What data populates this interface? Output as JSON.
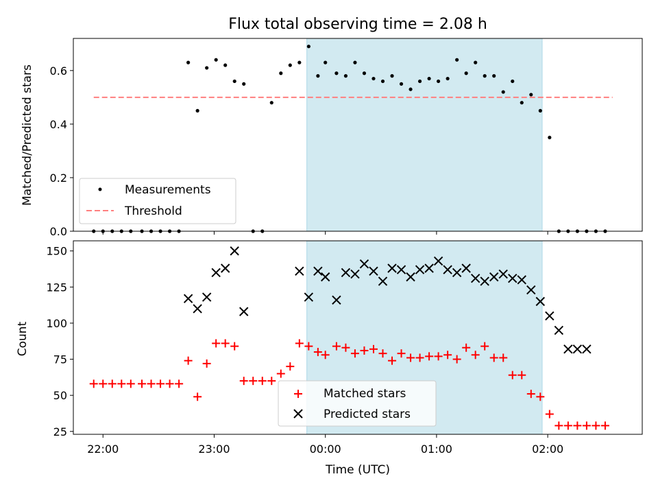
{
  "chart_data": [
    {
      "type": "scatter",
      "title": "Flux total observing time = 2.08 h",
      "ylabel": "Matched/Predicted stars",
      "xlabel": "",
      "xlim": [
        "21:44",
        "02:51"
      ],
      "ylim": [
        0,
        0.72
      ],
      "yticks": [
        0.0,
        0.2,
        0.4,
        0.6
      ],
      "ytick_labels": [
        "0.0",
        "0.2",
        "0.4",
        "0.6"
      ],
      "grid": false,
      "legend_position": "lower-left",
      "shaded_span": {
        "start": "23:50",
        "end": "01:57",
        "color": "#add8e6"
      },
      "threshold": {
        "name": "Threshold",
        "value": 0.5,
        "x_start": "21:55",
        "x_end": "02:35",
        "color": "#ff7f7f",
        "style": "dashed"
      },
      "series": [
        {
          "name": "Measurements",
          "marker": "dot",
          "color": "#000000",
          "x": [
            "21:55",
            "22:00",
            "22:05",
            "22:10",
            "22:15",
            "22:21",
            "22:26",
            "22:31",
            "22:36",
            "22:41",
            "22:46",
            "22:51",
            "22:56",
            "23:01",
            "23:06",
            "23:11",
            "23:16",
            "23:21",
            "23:26",
            "23:31",
            "23:36",
            "23:41",
            "23:46",
            "23:51",
            "23:56",
            "00:00",
            "00:06",
            "00:11",
            "00:16",
            "00:21",
            "00:26",
            "00:31",
            "00:36",
            "00:41",
            "00:46",
            "00:51",
            "00:56",
            "01:01",
            "01:06",
            "01:11",
            "01:16",
            "01:21",
            "01:26",
            "01:31",
            "01:36",
            "01:41",
            "01:46",
            "01:51",
            "01:56",
            "02:01",
            "02:06",
            "02:11",
            "02:16",
            "02:21",
            "02:26",
            "02:31"
          ],
          "y": [
            0,
            0,
            0,
            0,
            0,
            0,
            0,
            0,
            0,
            0,
            0.63,
            0.45,
            0.61,
            0.64,
            0.62,
            0.56,
            0.55,
            0,
            0,
            0.48,
            0.59,
            0.62,
            0.63,
            0.69,
            0.58,
            0.63,
            0.59,
            0.58,
            0.63,
            0.59,
            0.57,
            0.56,
            0.58,
            0.55,
            0.53,
            0.56,
            0.57,
            0.56,
            0.57,
            0.64,
            0.59,
            0.63,
            0.58,
            0.58,
            0.52,
            0.56,
            0.48,
            0.51,
            0.45,
            0.35,
            0,
            0,
            0,
            0,
            0,
            0
          ]
        }
      ]
    },
    {
      "type": "scatter",
      "title": "",
      "ylabel": "Count",
      "xlabel": "Time (UTC)",
      "xlim": [
        "21:44",
        "02:51"
      ],
      "ylim": [
        23,
        157
      ],
      "yticks": [
        25,
        50,
        75,
        100,
        125,
        150
      ],
      "ytick_labels": [
        "25",
        "50",
        "75",
        "100",
        "125",
        "150"
      ],
      "xticks": [
        "22:00",
        "23:00",
        "00:00",
        "01:00",
        "02:00"
      ],
      "xtick_labels": [
        "22:00",
        "23:00",
        "00:00",
        "01:00",
        "02:00"
      ],
      "grid": false,
      "legend_position": "lower-center",
      "shaded_span": {
        "start": "23:50",
        "end": "01:57",
        "color": "#add8e6"
      },
      "series": [
        {
          "name": "Matched stars",
          "marker": "plus",
          "color": "#ff0000",
          "x": [
            "21:55",
            "22:00",
            "22:05",
            "22:10",
            "22:15",
            "22:21",
            "22:26",
            "22:31",
            "22:36",
            "22:41",
            "22:46",
            "22:51",
            "22:56",
            "23:01",
            "23:06",
            "23:11",
            "23:16",
            "23:21",
            "23:26",
            "23:31",
            "23:36",
            "23:41",
            "23:46",
            "23:51",
            "23:56",
            "00:00",
            "00:06",
            "00:11",
            "00:16",
            "00:21",
            "00:26",
            "00:31",
            "00:36",
            "00:41",
            "00:46",
            "00:51",
            "00:56",
            "01:01",
            "01:06",
            "01:11",
            "01:16",
            "01:21",
            "01:26",
            "01:31",
            "01:36",
            "01:41",
            "01:46",
            "01:51",
            "01:56",
            "02:01",
            "02:06",
            "02:11",
            "02:16",
            "02:21",
            "02:26",
            "02:31"
          ],
          "y": [
            58,
            58,
            58,
            58,
            58,
            58,
            58,
            58,
            58,
            58,
            74,
            49,
            72,
            86,
            86,
            84,
            60,
            60,
            60,
            60,
            65,
            70,
            86,
            84,
            80,
            78,
            84,
            83,
            79,
            81,
            82,
            79,
            74,
            79,
            76,
            76,
            77,
            77,
            78,
            75,
            83,
            78,
            84,
            76,
            76,
            64,
            64,
            51,
            49,
            37,
            29,
            29,
            29,
            29,
            29,
            29
          ]
        },
        {
          "name": "Predicted stars",
          "marker": "x",
          "color": "#000000",
          "x": [
            "22:46",
            "22:51",
            "22:56",
            "23:01",
            "23:06",
            "23:11",
            "23:16",
            "23:46",
            "23:51",
            "23:56",
            "00:00",
            "00:06",
            "00:11",
            "00:16",
            "00:21",
            "00:26",
            "00:31",
            "00:36",
            "00:41",
            "00:46",
            "00:51",
            "00:56",
            "01:01",
            "01:06",
            "01:11",
            "01:16",
            "01:21",
            "01:26",
            "01:31",
            "01:36",
            "01:41",
            "01:46",
            "01:51",
            "01:56",
            "02:01",
            "02:06",
            "02:11",
            "02:16",
            "02:21"
          ],
          "y": [
            117,
            110,
            118,
            135,
            138,
            150,
            108,
            136,
            118,
            136,
            132,
            116,
            135,
            134,
            141,
            136,
            129,
            138,
            137,
            132,
            137,
            138,
            143,
            137,
            135,
            138,
            131,
            129,
            132,
            134,
            131,
            130,
            123,
            115,
            105,
            95,
            82,
            82,
            82
          ]
        }
      ]
    }
  ]
}
